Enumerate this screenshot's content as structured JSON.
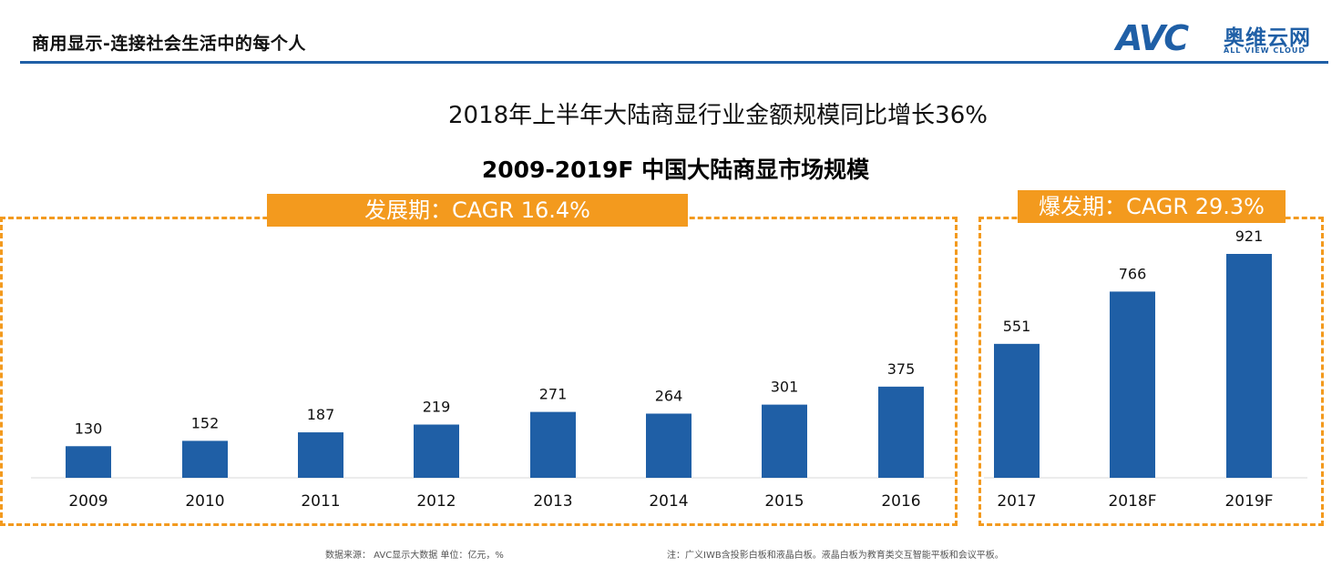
{
  "header": {
    "title": "商用显示-连接社会生活中的每个人",
    "logo_mark": "AVC",
    "logo_cn": "奥维云网",
    "logo_en": "ALL VIEW CLOUD"
  },
  "headline": "2018年上半年大陆商显行业金额规模同比增长36%",
  "phases": {
    "development": "发展期：CAGR 16.4%",
    "boom": "爆发期：CAGR 29.3%"
  },
  "chart_data": {
    "type": "bar",
    "title": "2009-2019F 中国大陆商显市场规模",
    "categories": [
      "2009",
      "2010",
      "2011",
      "2012",
      "2013",
      "2014",
      "2015",
      "2016",
      "2017",
      "2018F",
      "2019F"
    ],
    "values": [
      130,
      152,
      187,
      219,
      271,
      264,
      301,
      375,
      551,
      766,
      921
    ],
    "xlabel": "",
    "ylabel": "",
    "ylim": [
      0,
      921
    ],
    "grid": false,
    "bar_color": "#1f5fa6",
    "accent_color": "#f39a1e"
  },
  "footer": {
    "source": "数据来源： AVC显示大数据    单位：亿元，%",
    "note": "注：广义IWB含投影白板和液晶白板。液晶白板为教育类交互智能平板和会议平板。"
  }
}
